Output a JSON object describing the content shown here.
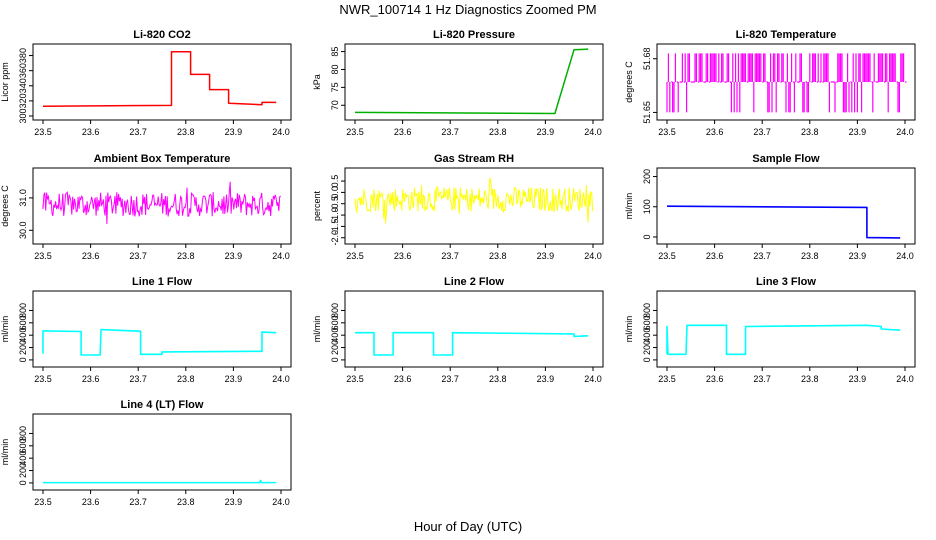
{
  "page": {
    "title": "NWR_100714  1 Hz Diagnostics Zoomed PM",
    "xlabel": "Hour of Day (UTC)"
  },
  "chart_data": [
    {
      "title": "Li-820 CO2",
      "type": "line",
      "ylabel": "Licor ppm",
      "color": "#ff0000",
      "xlim": [
        23.5,
        24.0
      ],
      "ylim": [
        300,
        390
      ],
      "xticks": [
        "23.5",
        "23.6",
        "23.7",
        "23.8",
        "23.9",
        "24.0"
      ],
      "yticks": [
        "300",
        "320",
        "340",
        "360",
        "380"
      ],
      "series": [
        {
          "x": [
            23.5,
            23.77,
            23.77,
            23.81,
            23.81,
            23.85,
            23.85,
            23.89,
            23.89,
            23.96,
            23.96,
            23.99
          ],
          "y": [
            313,
            314,
            385,
            385,
            355,
            355,
            335,
            335,
            317,
            315,
            318,
            318
          ]
        }
      ]
    },
    {
      "title": "Li-820 Pressure",
      "type": "line",
      "ylabel": "kPa",
      "color": "#00b000",
      "xlim": [
        23.5,
        24.0
      ],
      "ylim": [
        67,
        86
      ],
      "xticks": [
        "23.5",
        "23.6",
        "23.7",
        "23.8",
        "23.9",
        "24.0"
      ],
      "yticks": [
        "70",
        "75",
        "80",
        "85"
      ],
      "series": [
        {
          "x": [
            23.5,
            23.92,
            23.96,
            23.98,
            23.99
          ],
          "y": [
            68.0,
            67.7,
            85.5,
            85.6,
            85.7
          ]
        }
      ]
    },
    {
      "title": "Li-820 Temperature",
      "type": "line",
      "ylabel": "degrees C",
      "color": "#ff00ff",
      "xlim": [
        23.5,
        24.0
      ],
      "ylim": [
        51.648,
        51.686
      ],
      "xticks": [
        "23.5",
        "23.6",
        "23.7",
        "23.8",
        "23.9",
        "24.0"
      ],
      "yticks": [
        "51.65",
        "51.68"
      ],
      "series": [
        {
          "x": [
            23.5,
            24.0
          ],
          "y": [
            51.667,
            51.667
          ]
        }
      ]
    },
    {
      "title": "Ambient Box Temperature",
      "type": "line",
      "ylabel": "degrees C",
      "color": "#ff00ff",
      "xlim": [
        23.5,
        24.0
      ],
      "ylim": [
        29.7,
        31.8
      ],
      "xticks": [
        "23.5",
        "23.6",
        "23.7",
        "23.8",
        "23.9",
        "24.0"
      ],
      "yticks": [
        "30.0",
        "31.0"
      ],
      "series": [
        {
          "x": [
            23.5,
            24.0
          ],
          "y": [
            30.8,
            30.8
          ]
        }
      ]
    },
    {
      "title": "Gas Stream RH",
      "type": "line",
      "ylabel": "percent",
      "color": "#ffff00",
      "xlim": [
        23.5,
        24.0
      ],
      "ylim": [
        -2.1,
        0.9
      ],
      "xticks": [
        "23.5",
        "23.6",
        "23.7",
        "23.8",
        "23.9",
        "24.0"
      ],
      "yticks": [
        "-2.0",
        "-1.5",
        "-1.0",
        "-0.5",
        "0.0",
        "0.5"
      ],
      "series": [
        {
          "x": [
            23.5,
            24.0
          ],
          "y": [
            -0.3,
            -0.3
          ]
        }
      ]
    },
    {
      "title": "Sample Flow",
      "type": "line",
      "ylabel": "ml/min",
      "color": "#0000ff",
      "xlim": [
        23.5,
        24.0
      ],
      "ylim": [
        -10,
        215
      ],
      "xticks": [
        "23.5",
        "23.6",
        "23.7",
        "23.8",
        "23.9",
        "24.0"
      ],
      "yticks": [
        "0",
        "100",
        "200"
      ],
      "series": [
        {
          "x": [
            23.5,
            23.92,
            23.92,
            23.99
          ],
          "y": [
            102,
            98,
            -2,
            -3
          ]
        }
      ]
    },
    {
      "title": "Line 1 Flow",
      "type": "line",
      "ylabel": "ml/min",
      "color": "#00ffff",
      "xlim": [
        23.5,
        24.0
      ],
      "ylim": [
        -50,
        1050
      ],
      "xticks": [
        "23.5",
        "23.6",
        "23.7",
        "23.8",
        "23.9",
        "24.0"
      ],
      "yticks": [
        "0",
        "200",
        "400",
        "600",
        "800"
      ],
      "series": [
        {
          "x": [
            23.5,
            23.5,
            23.505,
            23.58,
            23.58,
            23.62,
            23.622,
            23.705,
            23.705,
            23.75,
            23.75,
            23.96,
            23.96,
            23.99
          ],
          "y": [
            100,
            470,
            470,
            460,
            80,
            80,
            490,
            465,
            90,
            90,
            130,
            140,
            450,
            440
          ]
        }
      ]
    },
    {
      "title": "Line 2 Flow",
      "type": "line",
      "ylabel": "ml/min",
      "color": "#00ffff",
      "xlim": [
        23.5,
        24.0
      ],
      "ylim": [
        -50,
        1050
      ],
      "xticks": [
        "23.5",
        "23.6",
        "23.7",
        "23.8",
        "23.9",
        "24.0"
      ],
      "yticks": [
        "0",
        "200",
        "400",
        "600",
        "800"
      ],
      "series": [
        {
          "x": [
            23.5,
            23.54,
            23.54,
            23.58,
            23.58,
            23.665,
            23.665,
            23.705,
            23.705,
            23.96,
            23.96,
            23.99
          ],
          "y": [
            440,
            440,
            80,
            80,
            440,
            440,
            80,
            80,
            440,
            420,
            380,
            390
          ]
        }
      ]
    },
    {
      "title": "Line 3 Flow",
      "type": "line",
      "ylabel": "ml/min",
      "color": "#00ffff",
      "xlim": [
        23.5,
        24.0
      ],
      "ylim": [
        -50,
        1050
      ],
      "xticks": [
        "23.5",
        "23.6",
        "23.7",
        "23.8",
        "23.9",
        "24.0"
      ],
      "yticks": [
        "0",
        "200",
        "400",
        "600",
        "800"
      ],
      "series": [
        {
          "x": [
            23.5,
            23.5,
            23.502,
            23.54,
            23.542,
            23.625,
            23.625,
            23.665,
            23.665,
            23.92,
            23.95,
            23.95,
            23.99
          ],
          "y": [
            90,
            540,
            90,
            90,
            560,
            560,
            90,
            90,
            540,
            560,
            540,
            500,
            480
          ]
        }
      ]
    },
    {
      "title": "Line 4 (LT) Flow",
      "type": "line",
      "ylabel": "ml/min",
      "color": "#00ffff",
      "xlim": [
        23.5,
        24.0
      ],
      "ylim": [
        -50,
        1050
      ],
      "xticks": [
        "23.5",
        "23.6",
        "23.7",
        "23.8",
        "23.9",
        "24.0"
      ],
      "yticks": [
        "0",
        "200",
        "400",
        "600",
        "800"
      ],
      "series": [
        {
          "x": [
            23.5,
            23.955,
            23.957,
            23.959,
            23.99
          ],
          "y": [
            5,
            5,
            40,
            5,
            5
          ]
        }
      ]
    }
  ]
}
